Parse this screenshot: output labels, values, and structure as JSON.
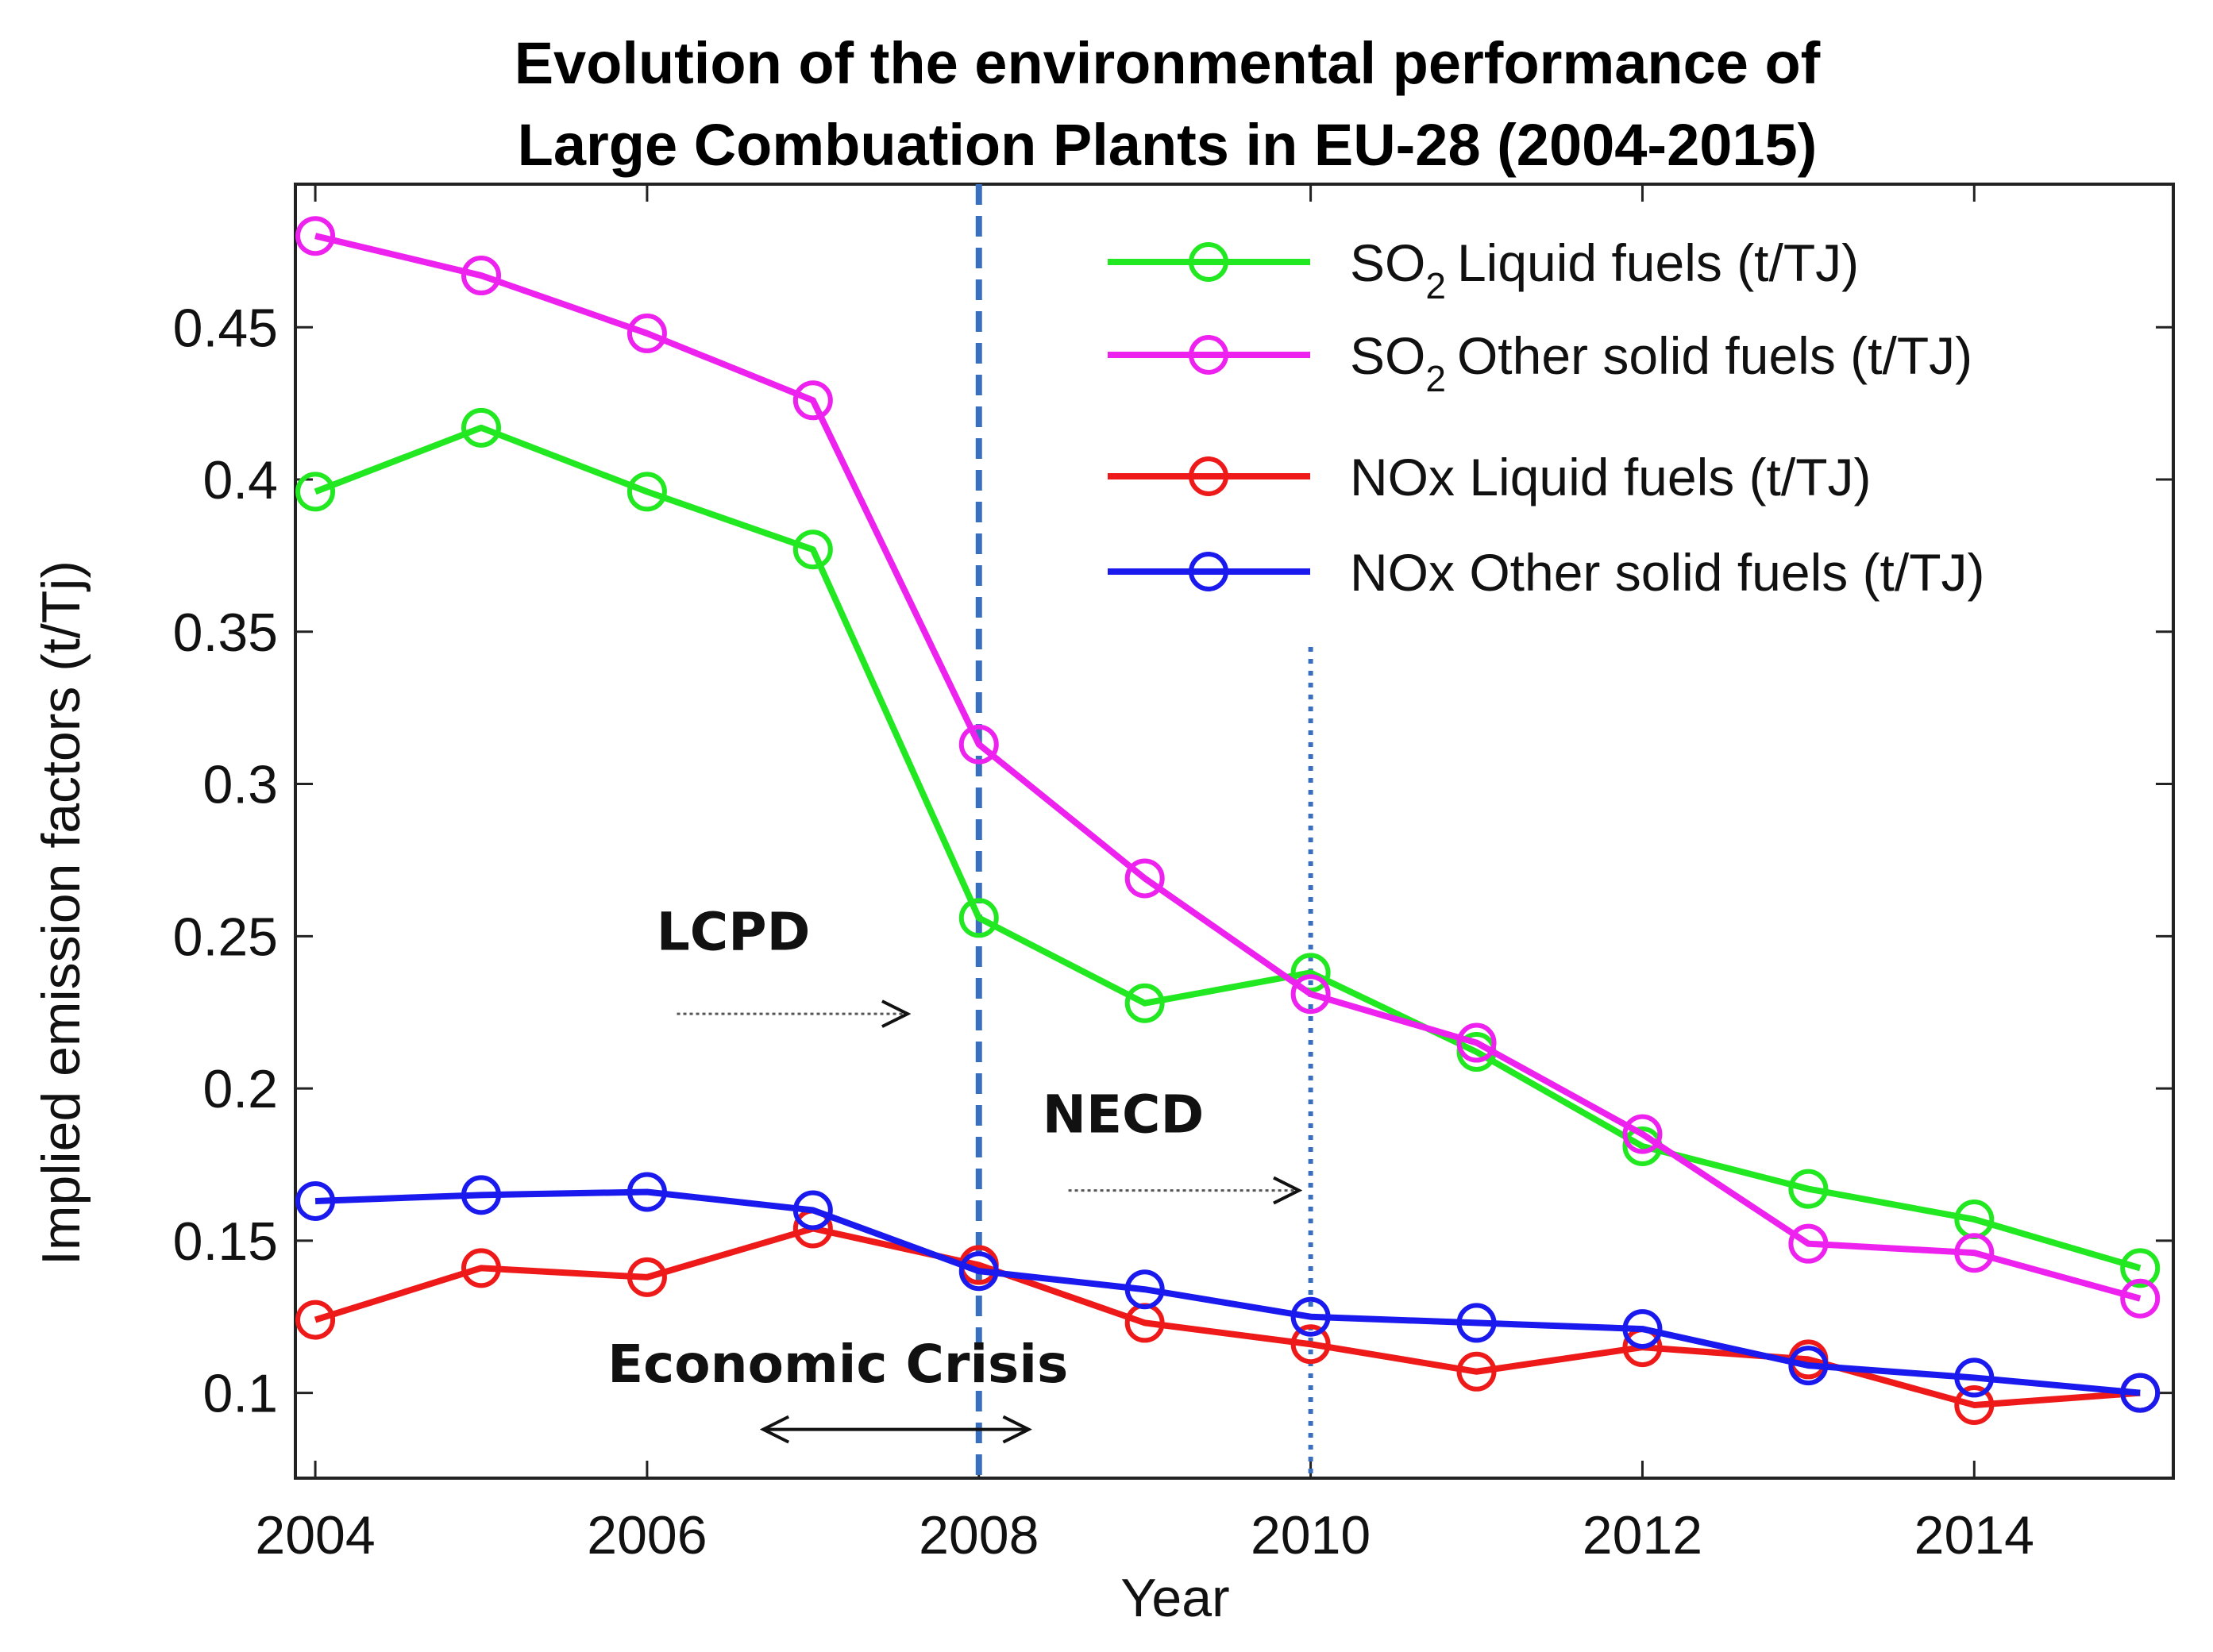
{
  "chart_data": {
    "type": "line",
    "title_lines": [
      "Evolution of the environmental performance of",
      "Large Combuation Plants in EU-28 (2004-2015)"
    ],
    "xlabel": "Year",
    "ylabel": "Implied emission factors (t/Tj)",
    "xlim": [
      2003.88,
      2015.2
    ],
    "ylim": [
      0.072,
      0.497
    ],
    "x_ticks": [
      2004,
      2006,
      2008,
      2010,
      2012,
      2014
    ],
    "y_ticks": [
      0.1,
      0.15,
      0.2,
      0.25,
      0.3,
      0.35,
      0.4,
      0.45
    ],
    "y_tick_labels": [
      "0.1",
      "0.15",
      "0.2",
      "0.25",
      "0.3",
      "0.35",
      "0.4",
      "0.45"
    ],
    "grid": false,
    "legend_position": "top-right",
    "x": [
      2004,
      2005,
      2006,
      2007,
      2008,
      2009,
      2010,
      2011,
      2012,
      2013,
      2014,
      2015
    ],
    "series": [
      {
        "name": "Liquid fuels (t/TJ)",
        "legend_prefix": "SO",
        "legend_sub": "2",
        "color": "#22e822",
        "values": [
          0.396,
          0.417,
          0.396,
          0.377,
          0.256,
          0.228,
          0.238,
          0.212,
          0.181,
          0.167,
          0.157,
          0.141
        ]
      },
      {
        "name": "Other solid fuels (t/TJ)",
        "legend_prefix": "SO",
        "legend_sub": "2",
        "color": "#ee22ee",
        "values": [
          0.48,
          0.467,
          0.448,
          0.426,
          0.313,
          0.269,
          0.231,
          0.215,
          0.185,
          0.149,
          0.146,
          0.131
        ]
      },
      {
        "name": "NOx Liquid fuels (t/TJ)",
        "legend_prefix": "",
        "legend_sub": "",
        "color": "#ee1a1a",
        "values": [
          0.124,
          0.141,
          0.138,
          0.154,
          0.142,
          0.123,
          0.116,
          0.107,
          0.115,
          0.111,
          0.096,
          0.1
        ]
      },
      {
        "name": "NOx Other solid fuels (t/TJ)",
        "legend_prefix": "",
        "legend_sub": "",
        "color": "#1a1aee",
        "values": [
          0.163,
          0.165,
          0.166,
          0.16,
          0.14,
          0.134,
          0.125,
          0.123,
          0.121,
          0.109,
          0.105,
          0.1
        ]
      }
    ],
    "vlines": [
      {
        "x": 2008,
        "style": "dashed",
        "color": "#3a6fbf"
      },
      {
        "x": 2010,
        "style": "dotted",
        "color": "#3a6fbf",
        "y_top": 0.345
      }
    ],
    "annotations": [
      {
        "text": "LCPD",
        "text_x": 2006.52,
        "text_y": 0.2455,
        "arrow": "right",
        "arrow_from_x": 2006.18,
        "arrow_to_x": 2007.57,
        "arrow_y": 0.2245
      },
      {
        "text": "NECD",
        "text_x": 2008.87,
        "text_y": 0.1855,
        "arrow": "right",
        "arrow_from_x": 2008.54,
        "arrow_to_x": 2009.93,
        "arrow_y": 0.1665
      },
      {
        "text": "Economic Crisis",
        "text_x": 2007.15,
        "text_y": 0.1035,
        "arrow": "both",
        "arrow_from_x": 2006.7,
        "arrow_to_x": 2008.3,
        "arrow_y": 0.088
      }
    ]
  }
}
